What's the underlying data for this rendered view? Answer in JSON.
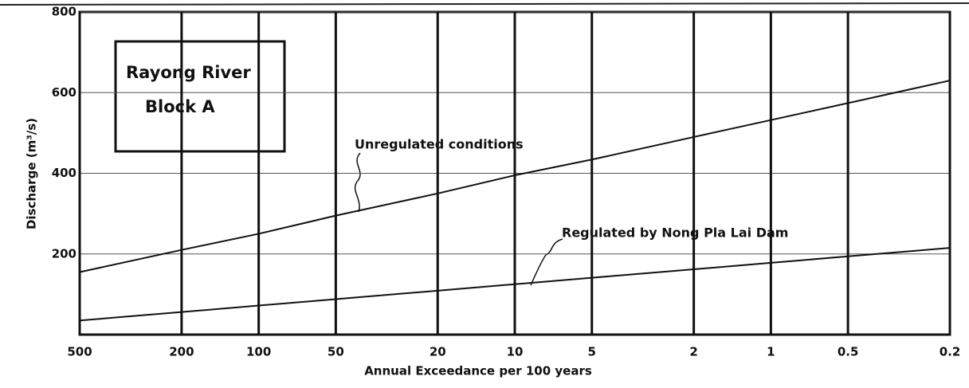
{
  "chart_data": {
    "type": "line",
    "xlabel": "Annual Exceedance per 100 years",
    "ylabel": "Discharge (m³/s)",
    "box_text": [
      "Rayong River",
      "Block A"
    ],
    "annotations": [
      "Unregulated conditions",
      "Regulated by Nong Pla Lai Dam"
    ],
    "x": [
      500,
      200,
      100,
      50,
      20,
      10,
      5,
      2,
      1,
      0.5,
      0.2
    ],
    "series": [
      {
        "name": "Unregulated conditions",
        "color": "#111111",
        "values": [
          155,
          210,
          250,
          295,
          350,
          395,
          434,
          490,
          532,
          574,
          630
        ]
      },
      {
        "name": "Regulated by Nong Pla Lai Dam",
        "color": "#111111",
        "values": [
          35,
          56,
          72,
          88,
          109,
          125,
          141,
          162,
          178,
          194,
          215
        ]
      }
    ],
    "xscale": "log",
    "xlim": [
      500,
      0.2
    ],
    "xticks": [
      500,
      200,
      100,
      50,
      20,
      10,
      5,
      2,
      1,
      0.5,
      0.2
    ],
    "ylim": [
      0,
      800
    ],
    "yticks": [
      200,
      400,
      600,
      800
    ],
    "grid": true
  }
}
